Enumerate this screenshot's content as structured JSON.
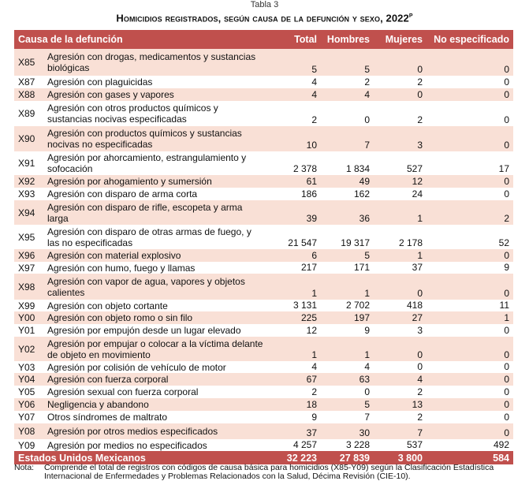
{
  "caption": "Tabla 3",
  "title": "Homicidios registrados, según causa de la defunción y sexo, 2022",
  "title_sup": "P",
  "headers": {
    "cause": "Causa de la defunción",
    "total": "Total",
    "men": "Hombres",
    "women": "Mujeres",
    "unspecified": "No especificado"
  },
  "rows": [
    {
      "code": "X85",
      "desc": "Agresión con drogas, medicamentos y sustancias biológicas",
      "total": "5",
      "men": "5",
      "women": "0",
      "ns": "0"
    },
    {
      "code": "X87",
      "desc": "Agresión con plaguicidas",
      "total": "4",
      "men": "2",
      "women": "2",
      "ns": "0"
    },
    {
      "code": "X88",
      "desc": "Agresión con gases y vapores",
      "total": "4",
      "men": "4",
      "women": "0",
      "ns": "0"
    },
    {
      "code": "X89",
      "desc": "Agresión con otros productos químicos y sustancias nocivas especificadas",
      "total": "2",
      "men": "0",
      "women": "2",
      "ns": "0"
    },
    {
      "code": "X90",
      "desc": "Agresión con productos químicos y sustancias nocivas no especificadas",
      "total": "10",
      "men": "7",
      "women": "3",
      "ns": "0"
    },
    {
      "code": "X91",
      "desc": "Agresión por ahorcamiento, estrangulamiento y sofocación",
      "total": "2 378",
      "men": "1 834",
      "women": "527",
      "ns": "17"
    },
    {
      "code": "X92",
      "desc": "Agresión por ahogamiento y sumersión",
      "total": "61",
      "men": "49",
      "women": "12",
      "ns": "0"
    },
    {
      "code": "X93",
      "desc": "Agresión con disparo de arma corta",
      "total": "186",
      "men": "162",
      "women": "24",
      "ns": "0"
    },
    {
      "code": "X94",
      "desc": "Agresión con disparo de rifle, escopeta y arma larga",
      "total": "39",
      "men": "36",
      "women": "1",
      "ns": "2"
    },
    {
      "code": "X95",
      "desc": "Agresión con disparo de otras armas de fuego, y las no especificadas",
      "total": "21 547",
      "men": "19 317",
      "women": "2 178",
      "ns": "52"
    },
    {
      "code": "X96",
      "desc": "Agresión con material explosivo",
      "total": "6",
      "men": "5",
      "women": "1",
      "ns": "0"
    },
    {
      "code": "X97",
      "desc": "Agresión con humo, fuego y llamas",
      "total": "217",
      "men": "171",
      "women": "37",
      "ns": "9"
    },
    {
      "code": "X98",
      "desc": "Agresión con vapor de agua, vapores y objetos calientes",
      "total": "1",
      "men": "1",
      "women": "0",
      "ns": "0"
    },
    {
      "code": "X99",
      "desc": "Agresión con objeto cortante",
      "total": "3 131",
      "men": "2 702",
      "women": "418",
      "ns": "11"
    },
    {
      "code": "Y00",
      "desc": "Agresión con objeto romo o sin filo",
      "total": "225",
      "men": "197",
      "women": "27",
      "ns": "1"
    },
    {
      "code": "Y01",
      "desc": "Agresión por empujón desde un lugar elevado",
      "total": "12",
      "men": "9",
      "women": "3",
      "ns": "0"
    },
    {
      "code": "Y02",
      "desc": "Agresión por empujar o colocar a la víctima delante de objeto en movimiento",
      "total": "1",
      "men": "1",
      "women": "0",
      "ns": "0"
    },
    {
      "code": "Y03",
      "desc": "Agresión por colisión de vehículo de motor",
      "total": "4",
      "men": "4",
      "women": "0",
      "ns": "0"
    },
    {
      "code": "Y04",
      "desc": "Agresión con fuerza corporal",
      "total": "67",
      "men": "63",
      "women": "4",
      "ns": "0"
    },
    {
      "code": "Y05",
      "desc": "Agresión sexual con fuerza corporal",
      "total": "2",
      "men": "0",
      "women": "2",
      "ns": "0"
    },
    {
      "code": "Y06",
      "desc": "Negligencia y abandono",
      "total": "18",
      "men": "5",
      "women": "13",
      "ns": "0"
    },
    {
      "code": "Y07",
      "desc": "Otros síndromes de maltrato",
      "total": "9",
      "men": "7",
      "women": "2",
      "ns": "0"
    },
    {
      "code": "Y08",
      "desc": "Agresión por otros medios especificados",
      "total": "37",
      "men": "30",
      "women": "7",
      "ns": "0"
    },
    {
      "code": "Y09",
      "desc": "Agresión por medios no especificados",
      "total": "4 257",
      "men": "3 228",
      "women": "537",
      "ns": "492"
    }
  ],
  "total_row": {
    "label": "Estados Unidos Mexicanos",
    "total": "32 223",
    "men": "27 839",
    "women": "3 800",
    "ns": "584"
  },
  "note": {
    "label": "Nota:",
    "text": "Comprende el total de registros con códigos de causa básica para homicidios (X85-Y09) según la Clasificación Estadística Internacional de Enfermedades y Problemas Relacionados con la Salud, Décima Revisión (CIE-10)."
  }
}
